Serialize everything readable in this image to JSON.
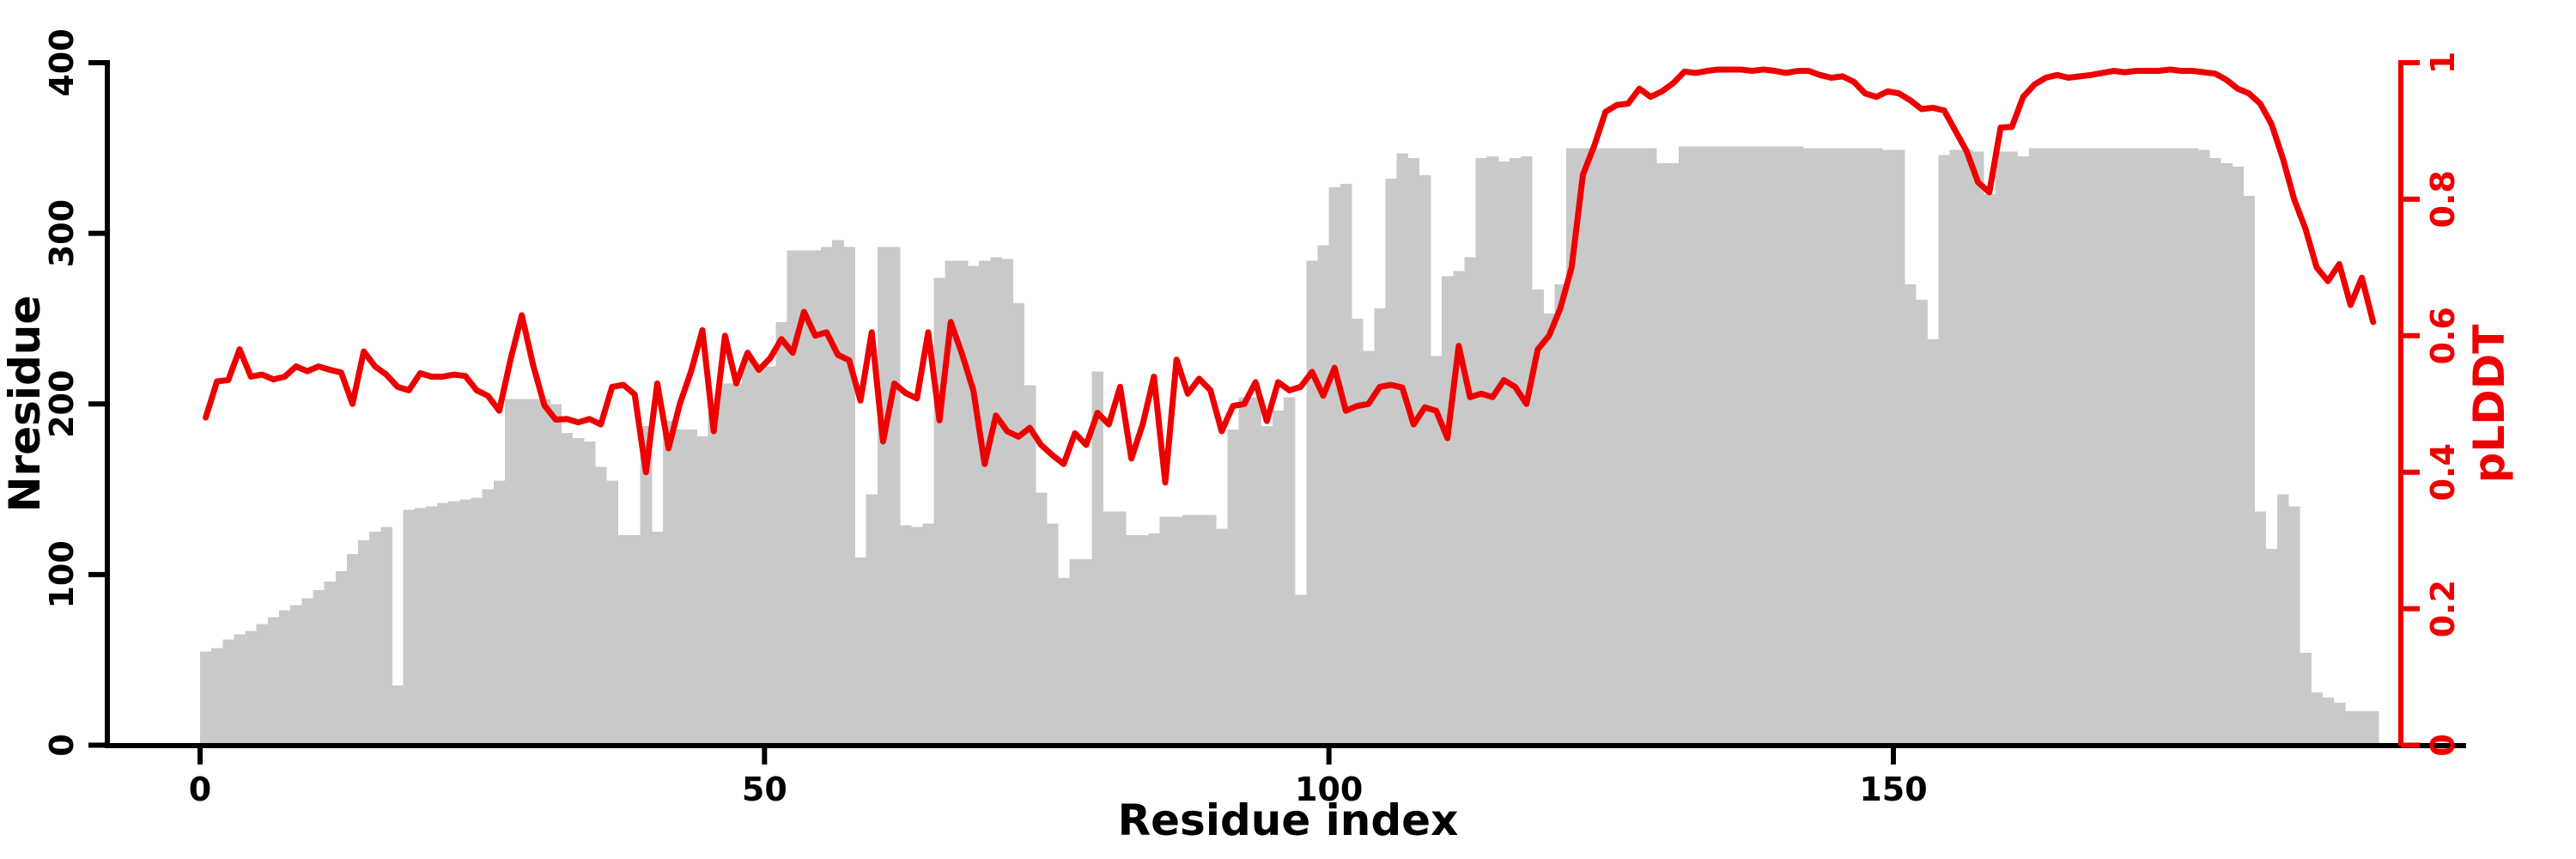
{
  "figure": {
    "background": "#ffffff",
    "description": "Per-residue bar plot of Nresidue with overlaid pLDDT line on secondary axis"
  },
  "chart_data": {
    "type": "bar",
    "overlay_type": "line",
    "title": "",
    "xlabel": "Residue index",
    "ylabel_left": "Nresidue",
    "ylabel_right": "pLDDT",
    "x_tick_values": [
      0,
      50,
      100,
      150
    ],
    "x_tick_labels": [
      "0",
      "50",
      "100",
      "150"
    ],
    "y_left_tick_values": [
      0,
      100,
      200,
      300,
      400
    ],
    "y_left_tick_labels": [
      "0",
      "100",
      "200",
      "300",
      "400"
    ],
    "y_right_tick_values": [
      0,
      0.2,
      0.4,
      0.6,
      0.8,
      1
    ],
    "y_right_tick_labels": [
      "0",
      "0.2",
      "0.4",
      "0.6",
      "0.8",
      "1"
    ],
    "ylim_left": [
      0,
      400
    ],
    "ylim_right": [
      0,
      1
    ],
    "xlim": [
      0,
      200
    ],
    "grid": false,
    "legend": "none",
    "n_points": 193,
    "colors": {
      "bar": "#c9c9c9",
      "line": "#ee0000",
      "axis_left": "#000000",
      "axis_bottom": "#000000",
      "axis_right": "#ee0000",
      "text": "#000000"
    },
    "series": [
      {
        "name": "Nresidue",
        "type": "bar",
        "axis": "left",
        "values": [
          55,
          57,
          62,
          65,
          67,
          71,
          75,
          79,
          82,
          86,
          91,
          96,
          102,
          112,
          120,
          125,
          128,
          35,
          138,
          139,
          140,
          142,
          143,
          144,
          145,
          150,
          155,
          203,
          203,
          203,
          203,
          200,
          183,
          180,
          178,
          163,
          155,
          123,
          123,
          187,
          125,
          190,
          185,
          185,
          181,
          195,
          212,
          212,
          228,
          222,
          222,
          248,
          290,
          290,
          290,
          292,
          296,
          292,
          110,
          147,
          292,
          292,
          129,
          128,
          130,
          274,
          284,
          284,
          281,
          284,
          286,
          285,
          259,
          211,
          148,
          130,
          98,
          109,
          109,
          219,
          137,
          137,
          123,
          123,
          124,
          134,
          134,
          135,
          135,
          135,
          127,
          185,
          204,
          204,
          187,
          196,
          204,
          88,
          284,
          293,
          327,
          329,
          250,
          231,
          256,
          332,
          347,
          344,
          334,
          228,
          275,
          278,
          286,
          344,
          345,
          342,
          344,
          345,
          267,
          253,
          270,
          350,
          350,
          350,
          350,
          350,
          350,
          350,
          350,
          341,
          341,
          351,
          351,
          351,
          351,
          351,
          351,
          351,
          351,
          351,
          351,
          351,
          350,
          350,
          350,
          350,
          350,
          350,
          350,
          349,
          349,
          270,
          261,
          238,
          346,
          349,
          349,
          348,
          323,
          348,
          348,
          345,
          350,
          350,
          350,
          350,
          350,
          350,
          350,
          350,
          350,
          350,
          350,
          350,
          350,
          350,
          350,
          349,
          344,
          341,
          339,
          322,
          137,
          115,
          147,
          140,
          54,
          31,
          28,
          25,
          20,
          20,
          20
        ]
      },
      {
        "name": "pLDDT",
        "type": "line",
        "axis": "right",
        "values": [
          0.48,
          0.533,
          0.535,
          0.58,
          0.54,
          0.543,
          0.536,
          0.54,
          0.555,
          0.548,
          0.555,
          0.55,
          0.546,
          0.5,
          0.577,
          0.555,
          0.543,
          0.525,
          0.52,
          0.545,
          0.54,
          0.54,
          0.543,
          0.541,
          0.52,
          0.512,
          0.49,
          0.565,
          0.63,
          0.557,
          0.498,
          0.477,
          0.478,
          0.473,
          0.478,
          0.47,
          0.525,
          0.528,
          0.514,
          0.4,
          0.53,
          0.435,
          0.5,
          0.548,
          0.608,
          0.46,
          0.6,
          0.53,
          0.575,
          0.55,
          0.567,
          0.595,
          0.575,
          0.635,
          0.6,
          0.605,
          0.572,
          0.564,
          0.505,
          0.605,
          0.445,
          0.53,
          0.516,
          0.508,
          0.605,
          0.476,
          0.62,
          0.573,
          0.52,
          0.412,
          0.483,
          0.46,
          0.452,
          0.465,
          0.44,
          0.425,
          0.412,
          0.457,
          0.44,
          0.487,
          0.47,
          0.525,
          0.42,
          0.47,
          0.54,
          0.385,
          0.565,
          0.515,
          0.537,
          0.52,
          0.46,
          0.497,
          0.5,
          0.532,
          0.475,
          0.532,
          0.52,
          0.525,
          0.547,
          0.512,
          0.553,
          0.49,
          0.497,
          0.5,
          0.525,
          0.528,
          0.524,
          0.47,
          0.495,
          0.49,
          0.45,
          0.585,
          0.51,
          0.515,
          0.51,
          0.535,
          0.525,
          0.5,
          0.58,
          0.6,
          0.64,
          0.7,
          0.836,
          0.878,
          0.928,
          0.938,
          0.94,
          0.962,
          0.95,
          0.958,
          0.97,
          0.987,
          0.985,
          0.988,
          0.99,
          0.99,
          0.99,
          0.988,
          0.99,
          0.988,
          0.985,
          0.988,
          0.988,
          0.982,
          0.978,
          0.98,
          0.972,
          0.955,
          0.95,
          0.958,
          0.955,
          0.945,
          0.932,
          0.934,
          0.93,
          0.9,
          0.87,
          0.825,
          0.81,
          0.905,
          0.906,
          0.95,
          0.968,
          0.978,
          0.982,
          0.978,
          0.98,
          0.982,
          0.985,
          0.988,
          0.986,
          0.988,
          0.988,
          0.988,
          0.99,
          0.988,
          0.988,
          0.986,
          0.984,
          0.975,
          0.962,
          0.955,
          0.94,
          0.91,
          0.86,
          0.8,
          0.757,
          0.7,
          0.68,
          0.705,
          0.645,
          0.685,
          0.62
        ]
      }
    ]
  }
}
